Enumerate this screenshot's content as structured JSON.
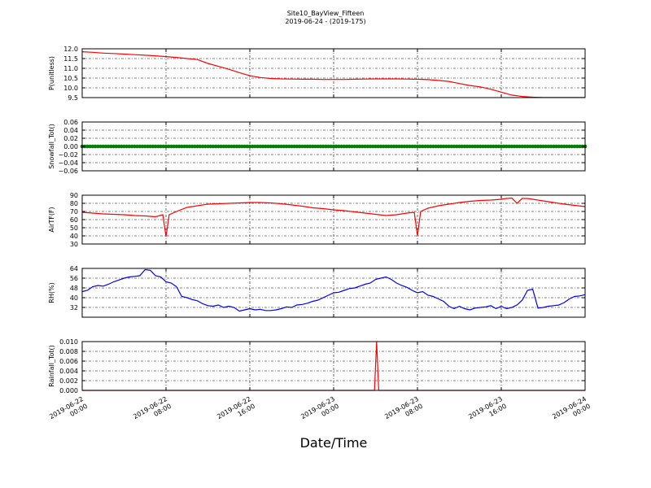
{
  "chart_data": {
    "type": "line",
    "title": "Site10_BayView_Fifteen",
    "subtitle": "2019-06-24 - (2019-175)",
    "xlabel": "Date/Time",
    "x_ticks": [
      {
        "label": "2019-06-22 00:00",
        "hour": 0
      },
      {
        "label": "2019-06-22 08:00",
        "hour": 8
      },
      {
        "label": "2019-06-22 16:00",
        "hour": 16
      },
      {
        "label": "2019-06-23 00:00",
        "hour": 24
      },
      {
        "label": "2019-06-23 08:00",
        "hour": 32
      },
      {
        "label": "2019-06-23 16:00",
        "hour": 40
      },
      {
        "label": "2019-06-24 00:00",
        "hour": 48
      }
    ],
    "grid": true,
    "panels": [
      {
        "ylabel": "P(unitless)",
        "color": "#ff0000",
        "ylim": [
          9.5,
          12.0
        ],
        "yticks": [
          "12.0",
          "11.5",
          "11.0",
          "10.5",
          "10.0",
          "9.5"
        ],
        "ytick_values": [
          12.0,
          11.5,
          11.0,
          10.5,
          10.0,
          9.5
        ],
        "x_hours": [
          0,
          1,
          2,
          3,
          4,
          5,
          6,
          7,
          8,
          9,
          10,
          11,
          12,
          13,
          14,
          15,
          16,
          17,
          18,
          19,
          20,
          21,
          22,
          23,
          24,
          25,
          26,
          27,
          28,
          29,
          30,
          31,
          32,
          33,
          34,
          35,
          36,
          37,
          38,
          39,
          40,
          41,
          42,
          43,
          44,
          45,
          46,
          47,
          48
        ],
        "values": [
          11.85,
          11.82,
          11.78,
          11.76,
          11.73,
          11.7,
          11.67,
          11.64,
          11.6,
          11.56,
          11.5,
          11.45,
          11.25,
          11.1,
          10.95,
          10.78,
          10.62,
          10.53,
          10.48,
          10.46,
          10.45,
          10.44,
          10.44,
          10.43,
          10.43,
          10.43,
          10.44,
          10.45,
          10.46,
          10.46,
          10.46,
          10.45,
          10.44,
          10.42,
          10.38,
          10.33,
          10.22,
          10.12,
          10.05,
          9.93,
          9.78,
          9.63,
          9.56,
          9.52,
          9.51,
          9.51,
          9.51,
          9.51,
          9.51
        ]
      },
      {
        "ylabel": "Snowfall_Tot()",
        "color": "#008000",
        "ylim": [
          -0.06,
          0.06
        ],
        "yticks": [
          "0.06",
          "0.04",
          "0.02",
          "0.00",
          "−0.02",
          "−0.04",
          "−0.06"
        ],
        "ytick_values": [
          0.06,
          0.04,
          0.02,
          0.0,
          -0.02,
          -0.04,
          -0.06
        ],
        "marker": "dots",
        "x_hours": [
          0,
          48
        ],
        "values": [
          0.0,
          0.0
        ]
      },
      {
        "ylabel": "AirTF(F)",
        "color": "#ff0000",
        "ylim": [
          30,
          90
        ],
        "yticks": [
          "90",
          "80",
          "70",
          "60",
          "50",
          "40",
          "30"
        ],
        "ytick_values": [
          90,
          80,
          70,
          60,
          50,
          40,
          30
        ],
        "x_hours": [
          0,
          1,
          2,
          3,
          4,
          5,
          6,
          7,
          7.7,
          8.0,
          8.3,
          9,
          10,
          11,
          12,
          13,
          14,
          15,
          16,
          17,
          18,
          19,
          20,
          21,
          22,
          23,
          24,
          25,
          26,
          27,
          28,
          29,
          30,
          31,
          31.7,
          32.0,
          32.3,
          33,
          34,
          35,
          36,
          37,
          38,
          39,
          40,
          40.5,
          41,
          41.5,
          42,
          42.5,
          43,
          44,
          45,
          46,
          47,
          48
        ],
        "values": [
          69,
          68,
          67,
          66.5,
          66,
          65,
          64.5,
          63.5,
          66,
          39,
          66,
          70,
          75,
          77,
          79,
          79.5,
          80,
          80.5,
          81,
          81,
          80.5,
          79.5,
          78,
          76.5,
          74.5,
          73.5,
          72,
          71,
          69.5,
          68,
          66.5,
          65,
          66,
          68,
          69,
          40,
          70,
          74,
          77,
          79,
          81,
          82.5,
          83.5,
          84,
          85,
          86,
          86.5,
          80,
          86,
          86,
          85,
          83,
          81,
          79,
          77.5,
          76
        ]
      },
      {
        "ylabel": "RH(%)",
        "color": "#0000ff",
        "ylim": [
          24,
          64
        ],
        "yticks": [
          "64",
          "56",
          "48",
          "40",
          "32"
        ],
        "ytick_values": [
          64,
          56,
          48,
          40,
          32
        ],
        "x_hours": [
          0,
          0.5,
          1,
          1.5,
          2,
          2.5,
          3,
          3.5,
          4,
          4.5,
          5,
          5.5,
          6,
          6.5,
          7,
          7.5,
          8,
          8.5,
          9,
          9.5,
          10,
          10.5,
          11,
          11.5,
          12,
          12.5,
          13,
          13.5,
          14,
          14.5,
          15,
          15.5,
          16,
          16.5,
          17,
          17.5,
          18,
          18.5,
          19,
          19.5,
          20,
          20.5,
          21,
          21.5,
          22,
          22.5,
          23,
          23.5,
          24,
          24.5,
          25,
          25.5,
          26,
          26.5,
          27,
          27.5,
          28,
          28.5,
          29,
          29.5,
          30,
          30.5,
          31,
          31.5,
          32,
          32.5,
          33,
          33.5,
          34,
          34.5,
          35,
          35.5,
          36,
          36.5,
          37,
          37.5,
          38,
          38.5,
          39,
          39.5,
          40,
          40.5,
          41,
          41.5,
          42,
          42.5,
          43,
          43.5,
          44,
          44.5,
          45,
          45.5,
          46,
          46.5,
          47,
          47.5,
          48
        ],
        "values": [
          45,
          46,
          49,
          50,
          49.5,
          51,
          53,
          54.5,
          56,
          57,
          57.5,
          58,
          63,
          62.5,
          58,
          57,
          53,
          52,
          49,
          41,
          40,
          38.5,
          37.5,
          35,
          33.5,
          33,
          34,
          32,
          33,
          32,
          29,
          30,
          31,
          30,
          30.5,
          29.5,
          29.5,
          30,
          31,
          32.5,
          32,
          34,
          34.5,
          35.5,
          37,
          38,
          40,
          42,
          44,
          44.5,
          46,
          47.5,
          48,
          49.5,
          51,
          52,
          55,
          56,
          57,
          55,
          52,
          50,
          48.5,
          46,
          44,
          45,
          42,
          41,
          39,
          37,
          33,
          31,
          33,
          31,
          30,
          31.5,
          32,
          32.5,
          33.5,
          31,
          33,
          31,
          32,
          34,
          38,
          46,
          47,
          31.5,
          32,
          33,
          33.5,
          34,
          36,
          39,
          41,
          41.5,
          42.5
        ]
      },
      {
        "ylabel": "Rainfall_Tot()",
        "color": "#ff0000",
        "ylim": [
          0.0,
          0.01
        ],
        "yticks": [
          "0.010",
          "0.008",
          "0.006",
          "0.004",
          "0.002",
          "0.000"
        ],
        "ytick_values": [
          0.01,
          0.008,
          0.006,
          0.004,
          0.002,
          0.0
        ],
        "x_hours": [
          0,
          27.9,
          28.1,
          28.3,
          48
        ],
        "values": [
          0.0,
          0.0,
          0.01,
          0.0,
          0.0
        ]
      }
    ]
  }
}
